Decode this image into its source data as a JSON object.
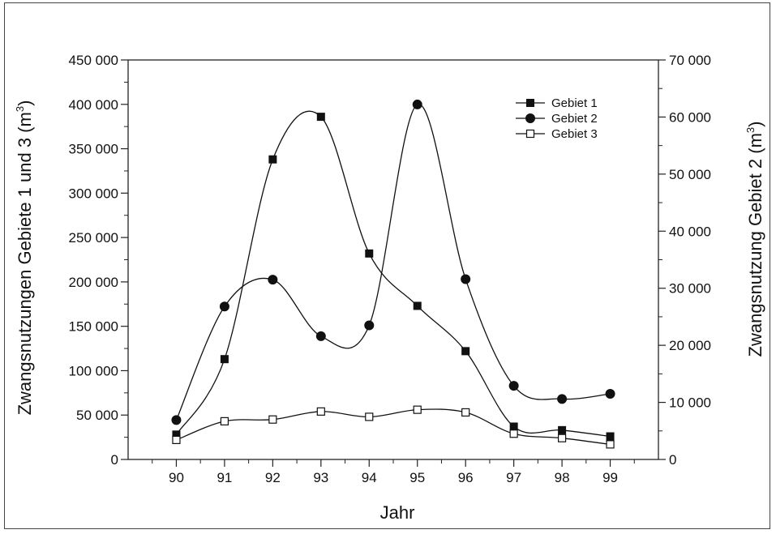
{
  "chart_data": {
    "type": "line",
    "title": "",
    "xlabel": "Jahr",
    "ylabel_left": "Zwangsnutzungen Gebiete 1 und 3 (m",
    "ylabel_left_sup": "3",
    "ylabel_left_close": ")",
    "ylabel_right": "Zwangsnutzung Gebiet 2 (m",
    "ylabel_right_sup": "3",
    "ylabel_right_close": ")",
    "x": [
      90,
      91,
      92,
      93,
      94,
      95,
      96,
      97,
      98,
      99
    ],
    "x_tick_labels": [
      "90",
      "91",
      "92",
      "93",
      "94",
      "95",
      "96",
      "97",
      "98",
      "99"
    ],
    "xlim": [
      89,
      100
    ],
    "ylim_left": [
      0,
      450000
    ],
    "ylim_right": [
      0,
      70000
    ],
    "y_left_ticks": [
      0,
      50000,
      100000,
      150000,
      200000,
      250000,
      300000,
      350000,
      400000,
      450000
    ],
    "y_left_tick_labels": [
      "0",
      "50 000",
      "100 000",
      "150 000",
      "200 000",
      "250 000",
      "300 000",
      "350 000",
      "400 000",
      "450 000"
    ],
    "y_right_ticks": [
      0,
      10000,
      20000,
      30000,
      40000,
      50000,
      60000,
      70000
    ],
    "y_right_tick_labels": [
      "0",
      "10 000",
      "20 000",
      "30 000",
      "40 000",
      "50 000",
      "60 000",
      "70 000"
    ],
    "grid": false,
    "legend_position": "top-right",
    "series": [
      {
        "name": "Gebiet 1",
        "axis": "left",
        "marker": "filled-square",
        "values": [
          28000,
          113000,
          338000,
          386000,
          232000,
          173000,
          122000,
          37000,
          33000,
          26000
        ]
      },
      {
        "name": "Gebiet 2",
        "axis": "right",
        "marker": "filled-circle",
        "values": [
          6900,
          26800,
          31500,
          21600,
          23500,
          62200,
          31600,
          12900,
          10600,
          11500
        ]
      },
      {
        "name": "Gebiet 3",
        "axis": "left",
        "marker": "open-square",
        "values": [
          22000,
          43000,
          45000,
          54000,
          48000,
          56000,
          53000,
          29000,
          24000,
          17000
        ]
      }
    ]
  }
}
